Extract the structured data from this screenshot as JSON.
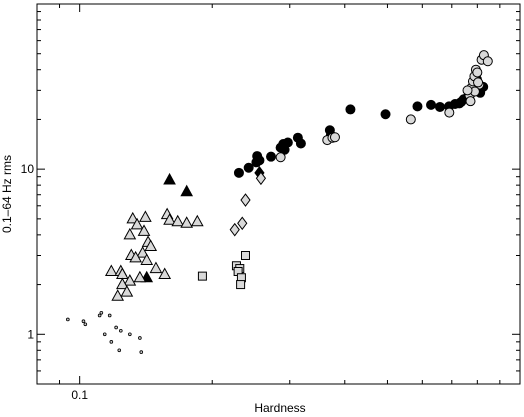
{
  "chart_data": {
    "type": "scatter",
    "title": "",
    "xlabel": "Hardness",
    "ylabel": "0.1–64 Hz rms",
    "xscale": "log",
    "yscale": "log",
    "xlim": [
      0.08,
      1.0
    ],
    "ylim": [
      0.5,
      100
    ],
    "x_tick_labels": [
      {
        "value": 0.1,
        "label": "0.1"
      }
    ],
    "y_tick_labels": [
      {
        "value": 1,
        "label": "1"
      },
      {
        "value": 10,
        "label": "10"
      }
    ],
    "grid": false,
    "legend": "none",
    "series": [
      {
        "marker": "filled-circle",
        "fill": "#000000",
        "points": [
          [
            0.23,
            9.5
          ],
          [
            0.242,
            10.2
          ],
          [
            0.252,
            11.0
          ],
          [
            0.253,
            12.0
          ],
          [
            0.256,
            11.3
          ],
          [
            0.272,
            11.9
          ],
          [
            0.286,
            13.5
          ],
          [
            0.29,
            14.2
          ],
          [
            0.292,
            13.1
          ],
          [
            0.297,
            14.5
          ],
          [
            0.313,
            15.5
          ],
          [
            0.318,
            14.3
          ],
          [
            0.37,
            17.2
          ],
          [
            0.372,
            16.0
          ],
          [
            0.412,
            23.0
          ],
          [
            0.495,
            21.5
          ],
          [
            0.585,
            24.0
          ],
          [
            0.628,
            24.5
          ],
          [
            0.658,
            23.8
          ],
          [
            0.69,
            24.0
          ],
          [
            0.712,
            24.8
          ],
          [
            0.735,
            25.5
          ],
          [
            0.745,
            26.5
          ],
          [
            0.758,
            27.0
          ],
          [
            0.772,
            28.5
          ],
          [
            0.785,
            30.0
          ],
          [
            0.792,
            32.0
          ],
          [
            0.803,
            30.5
          ],
          [
            0.812,
            29.0
          ],
          [
            0.825,
            31.5
          ],
          [
            0.728,
            25.0
          ],
          [
            0.765,
            27.5
          ],
          [
            0.798,
            35.0
          ]
        ]
      },
      {
        "marker": "open-circle",
        "fill": "#d9d9d9",
        "points": [
          [
            0.565,
            20.0
          ],
          [
            0.691,
            22.0
          ],
          [
            0.365,
            15.0
          ],
          [
            0.375,
            15.5
          ],
          [
            0.38,
            15.6
          ],
          [
            0.286,
            11.8
          ],
          [
            0.768,
            28.0
          ],
          [
            0.775,
            31.0
          ],
          [
            0.782,
            34.0
          ],
          [
            0.788,
            36.5
          ],
          [
            0.794,
            40.0
          ],
          [
            0.8,
            38.5
          ],
          [
            0.808,
            32.5
          ],
          [
            0.818,
            46.0
          ],
          [
            0.828,
            49.0
          ],
          [
            0.845,
            45.0
          ],
          [
            0.772,
            25.8
          ],
          [
            0.79,
            29.5
          ],
          [
            0.803,
            33.5
          ],
          [
            0.76,
            30.0
          ]
        ]
      },
      {
        "marker": "filled-triangle",
        "fill": "#000000",
        "points": [
          [
            0.16,
            8.6
          ],
          [
            0.175,
            7.3
          ],
          [
            0.142,
            2.2
          ]
        ]
      },
      {
        "marker": "open-triangle",
        "fill": "#d9d9d9",
        "points": [
          [
            0.132,
            5.0
          ],
          [
            0.141,
            5.1
          ],
          [
            0.135,
            4.6
          ],
          [
            0.158,
            5.3
          ],
          [
            0.16,
            4.9
          ],
          [
            0.167,
            4.8
          ],
          [
            0.175,
            4.7
          ],
          [
            0.185,
            4.8
          ],
          [
            0.13,
            4.0
          ],
          [
            0.14,
            4.2
          ],
          [
            0.143,
            3.6
          ],
          [
            0.145,
            3.4
          ],
          [
            0.139,
            3.1
          ],
          [
            0.131,
            3.0
          ],
          [
            0.134,
            2.9
          ],
          [
            0.142,
            2.8
          ],
          [
            0.118,
            2.4
          ],
          [
            0.124,
            2.4
          ],
          [
            0.125,
            2.3
          ],
          [
            0.149,
            2.5
          ],
          [
            0.156,
            2.3
          ],
          [
            0.137,
            2.2
          ],
          [
            0.13,
            2.1
          ],
          [
            0.125,
            2.0
          ],
          [
            0.128,
            1.8
          ],
          [
            0.122,
            1.7
          ]
        ]
      },
      {
        "marker": "filled-diamond",
        "fill": "#000000",
        "points": [
          [
            0.256,
            9.5
          ]
        ]
      },
      {
        "marker": "open-diamond",
        "fill": "#d9d9d9",
        "points": [
          [
            0.258,
            8.8
          ],
          [
            0.238,
            6.5
          ],
          [
            0.234,
            4.7
          ],
          [
            0.225,
            4.3
          ]
        ]
      },
      {
        "marker": "open-square",
        "fill": "#d9d9d9",
        "points": [
          [
            0.19,
            2.25
          ],
          [
            0.227,
            2.6
          ],
          [
            0.238,
            3.0
          ],
          [
            0.231,
            2.5
          ],
          [
            0.229,
            2.4
          ],
          [
            0.233,
            2.2
          ],
          [
            0.232,
            2.0
          ]
        ]
      },
      {
        "marker": "small-dot",
        "fill": "#c8c8c8",
        "points": [
          [
            0.094,
            1.23
          ],
          [
            0.102,
            1.2
          ],
          [
            0.111,
            1.3
          ],
          [
            0.112,
            1.35
          ],
          [
            0.103,
            1.15
          ],
          [
            0.117,
            1.3
          ],
          [
            0.114,
            1.0
          ],
          [
            0.121,
            1.1
          ],
          [
            0.124,
            1.05
          ],
          [
            0.118,
            0.9
          ],
          [
            0.13,
            1.0
          ],
          [
            0.137,
            0.95
          ],
          [
            0.123,
            0.8
          ],
          [
            0.138,
            0.78
          ]
        ]
      }
    ]
  }
}
